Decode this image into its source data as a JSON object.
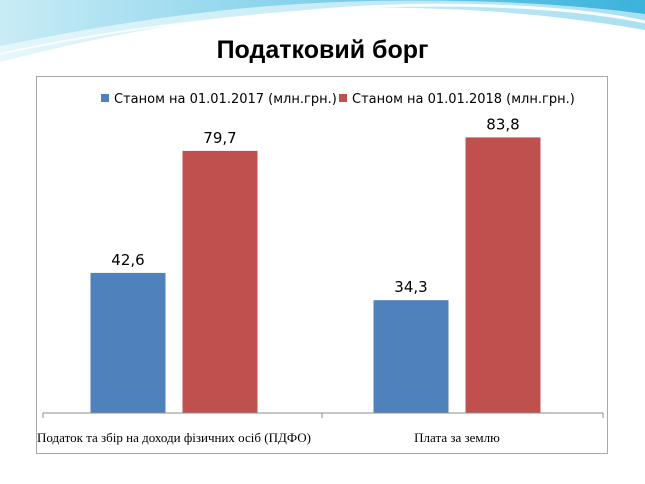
{
  "title": "Податковий борг",
  "chart_data": {
    "type": "bar",
    "categories": [
      "Податок та збір на доходи фізичних осіб (ПДФО)",
      "Плата за землю"
    ],
    "series": [
      {
        "name": "Станом на 01.01.2017 (млн.грн.)",
        "values": [
          42.6,
          34.3
        ],
        "labels": [
          "42,6",
          "34,3"
        ],
        "color": "#4f81bd"
      },
      {
        "name": "Станом на 01.01.2018 (млн.грн.)",
        "values": [
          79.7,
          83.8
        ],
        "labels": [
          "79,7",
          "83,8"
        ],
        "color": "#c0504d"
      }
    ],
    "ylim": [
      0,
      90
    ],
    "grid": false,
    "legend": "top"
  }
}
